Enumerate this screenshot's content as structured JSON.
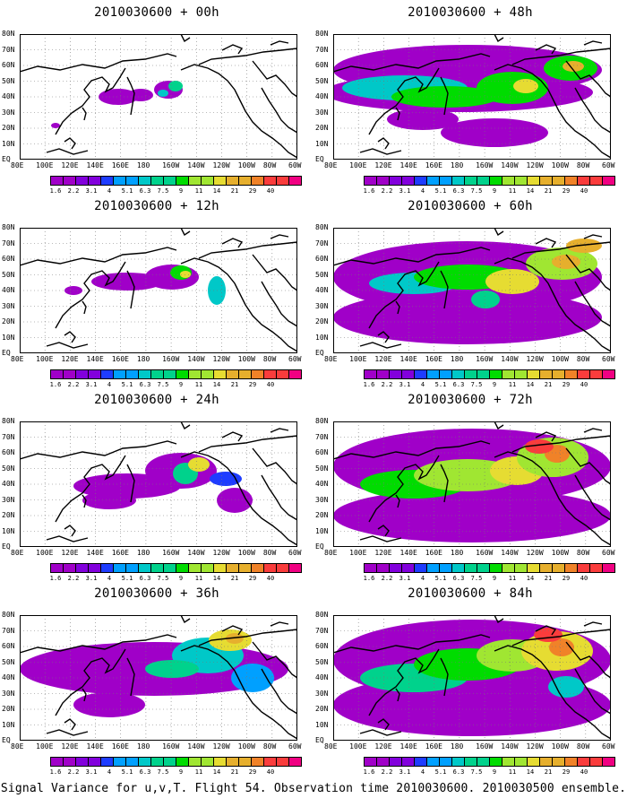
{
  "caption": "Signal Variance for u,v,T. Flight 54. Observation time 2010030600. 2010030500 ensemble.",
  "lat_labels": [
    "80N",
    "70N",
    "60N",
    "50N",
    "40N",
    "30N",
    "20N",
    "10N",
    "EQ"
  ],
  "lon_labels": [
    "80E",
    "100E",
    "120E",
    "140E",
    "160E",
    "180",
    "160W",
    "140W",
    "120W",
    "100W",
    "80W",
    "60W"
  ],
  "colorbar": {
    "labels": [
      "1.6",
      "2.2",
      "3.1",
      "4",
      "5.1",
      "6.3",
      "7.5",
      "9",
      "11",
      "14",
      "21",
      "29",
      "40"
    ],
    "colors": [
      "#a000c8",
      "#8200dc",
      "#1e3cff",
      "#00a0ff",
      "#00c8c8",
      "#00d28c",
      "#00dc00",
      "#a0e632",
      "#e6dc32",
      "#e6af2d",
      "#f08228",
      "#fa3c3c",
      "#f00082"
    ]
  },
  "chart_data": [
    {
      "type": "heatmap",
      "title": "2010030600 + 00h",
      "forecast_hour": 0,
      "coverage": "sparse",
      "max_level": "14"
    },
    {
      "type": "heatmap",
      "title": "2010030600 + 48h",
      "forecast_hour": 48,
      "coverage": "broad",
      "max_level": "21"
    },
    {
      "type": "heatmap",
      "title": "2010030600 + 12h",
      "forecast_hour": 12,
      "coverage": "sparse",
      "max_level": "11"
    },
    {
      "type": "heatmap",
      "title": "2010030600 + 60h",
      "forecast_hour": 60,
      "coverage": "broad",
      "max_level": "21"
    },
    {
      "type": "heatmap",
      "title": "2010030600 + 24h",
      "forecast_hour": 24,
      "coverage": "moderate",
      "max_level": "11"
    },
    {
      "type": "heatmap",
      "title": "2010030600 + 72h",
      "forecast_hour": 72,
      "coverage": "broad",
      "max_level": "29"
    },
    {
      "type": "heatmap",
      "title": "2010030600 + 36h",
      "forecast_hour": 36,
      "coverage": "moderate",
      "max_level": "14"
    },
    {
      "type": "heatmap",
      "title": "2010030600 + 84h",
      "forecast_hour": 84,
      "coverage": "broad",
      "max_level": "29"
    }
  ]
}
